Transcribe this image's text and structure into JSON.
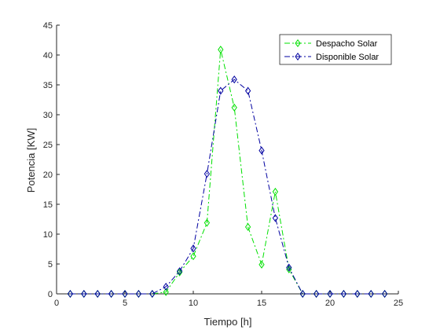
{
  "chart_data": {
    "type": "line",
    "xlabel": "Tiempo [h]",
    "ylabel": "Potencia [KW]",
    "xlim": [
      0,
      25
    ],
    "ylim": [
      0,
      45
    ],
    "xticks": [
      0,
      5,
      10,
      15,
      20,
      25
    ],
    "yticks": [
      0,
      5,
      10,
      15,
      20,
      25,
      30,
      35,
      40,
      45
    ],
    "grid": false,
    "legend_position": "top-right",
    "x": [
      1,
      2,
      3,
      4,
      5,
      6,
      7,
      8,
      9,
      10,
      11,
      12,
      13,
      14,
      15,
      16,
      17,
      18,
      19,
      20,
      21,
      22,
      23,
      24
    ],
    "series": [
      {
        "name": "Despacho Solar",
        "color": "#00e000",
        "line_style": "dash-dot",
        "marker": "diamond",
        "values": [
          0,
          0,
          0,
          0,
          0,
          0,
          0,
          0.3,
          3.6,
          6.3,
          11.9,
          40.9,
          31.2,
          11.2,
          4.9,
          17.1,
          4.1,
          0,
          0,
          0,
          0,
          0,
          0,
          0
        ]
      },
      {
        "name": "Disponible Solar",
        "color": "#0000a0",
        "line_style": "dash-dot",
        "marker": "diamond",
        "values": [
          0,
          0,
          0,
          0,
          0,
          0,
          0,
          1.2,
          3.8,
          7.6,
          20.1,
          34.0,
          35.9,
          34.0,
          24.0,
          12.7,
          4.4,
          0,
          0,
          0,
          0,
          0,
          0,
          0
        ]
      }
    ]
  }
}
